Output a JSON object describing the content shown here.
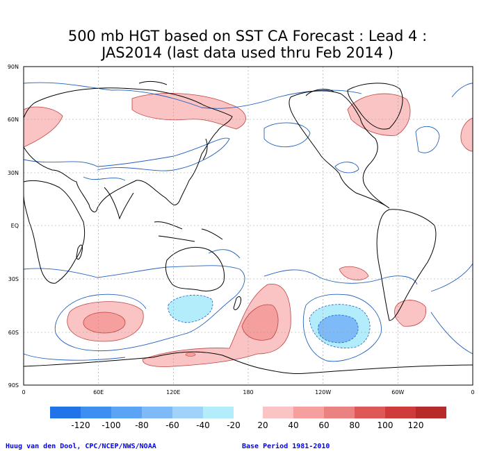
{
  "title": {
    "line1": "500 mb HGT based on SST CA Forecast : Lead 4 :",
    "line2": "JAS2014 (last data used thru Feb 2014 )"
  },
  "axes": {
    "lat_labels": [
      "90N",
      "60N",
      "30N",
      "EQ",
      "30S",
      "60S",
      "90S"
    ],
    "lon_labels": [
      "0",
      "60E",
      "120E",
      "180",
      "120W",
      "60W",
      "0"
    ]
  },
  "legend": {
    "negative": [
      {
        "label": "-120",
        "color": "#2173e8"
      },
      {
        "label": "-100",
        "color": "#3c8ef0"
      },
      {
        "label": "-80",
        "color": "#5aa3f5"
      },
      {
        "label": "-60",
        "color": "#7fbaf8"
      },
      {
        "label": "-40",
        "color": "#9fd3fb"
      },
      {
        "label": "-20",
        "color": "#b3ecfb"
      }
    ],
    "positive": [
      {
        "label": "20",
        "color": "#fbc4c4"
      },
      {
        "label": "40",
        "color": "#f59f9f"
      },
      {
        "label": "60",
        "color": "#ea8282"
      },
      {
        "label": "80",
        "color": "#df5858"
      },
      {
        "label": "100",
        "color": "#cf3a3a"
      },
      {
        "label": "120",
        "color": "#b62a2a"
      }
    ]
  },
  "footer": {
    "credit": "Huug van den Dool, CPC/NCEP/NWS/NOAA",
    "base_period": "Base Period 1981-2010"
  },
  "colors": {
    "contour_line": "#1f5fbf",
    "land_outline": "#000000",
    "grid": "#9a9a9a"
  }
}
